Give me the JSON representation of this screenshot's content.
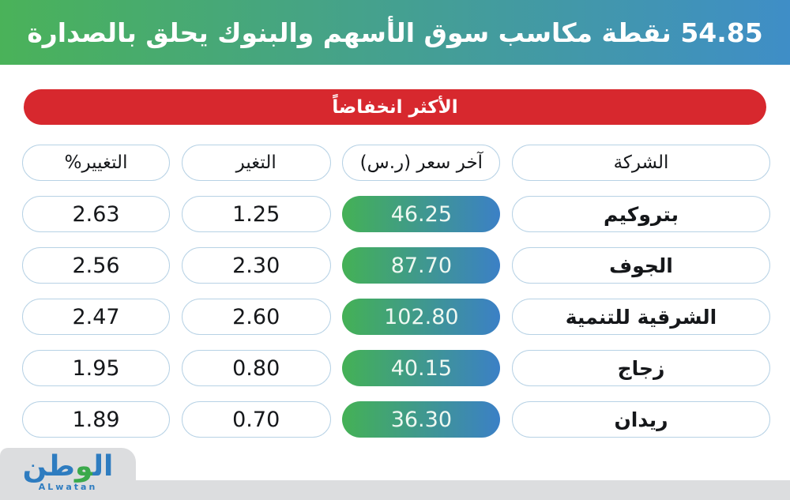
{
  "header": {
    "title": "54.85 نقطة مكاسب سوق الأسهم والبنوك يحلق بالصدارة"
  },
  "banner": {
    "label": "الأكثر انخفاضاً"
  },
  "table": {
    "columns": {
      "company": "الشركة",
      "price": "آخر سعر (ر.س)",
      "change": "التغير",
      "change_pct": "التغيير%"
    },
    "rows": [
      {
        "company": "بتروكيم",
        "price": "46.25",
        "change": "1.25",
        "change_pct": "2.63"
      },
      {
        "company": "الجوف",
        "price": "87.70",
        "change": "2.30",
        "change_pct": "2.56"
      },
      {
        "company": "الشرقية للتنمية",
        "price": "102.80",
        "change": "2.60",
        "change_pct": "2.47"
      },
      {
        "company": "زجاج",
        "price": "40.15",
        "change": "0.80",
        "change_pct": "1.95"
      },
      {
        "company": "ريدان",
        "price": "36.30",
        "change": "0.70",
        "change_pct": "1.89"
      }
    ]
  },
  "chart_data": {
    "type": "table",
    "title": "الأكثر انخفاضاً",
    "columns": [
      "الشركة",
      "آخر سعر (ر.س)",
      "التغير",
      "التغيير%"
    ],
    "rows": [
      [
        "بتروكيم",
        46.25,
        1.25,
        2.63
      ],
      [
        "الجوف",
        87.7,
        2.3,
        2.56
      ],
      [
        "الشرقية للتنمية",
        102.8,
        2.6,
        2.47
      ],
      [
        "زجاج",
        40.15,
        0.8,
        1.95
      ],
      [
        "ريدان",
        36.3,
        0.7,
        1.89
      ]
    ]
  },
  "logo": {
    "arabic_prefix": "ال",
    "arabic_waw": "و",
    "arabic_suffix": "طن",
    "latin": "ALwatan"
  },
  "colors": {
    "grad_green": "#4ab259",
    "grad_blue": "#3f8ec7",
    "accent_red": "#d7282e",
    "pill_border": "#b7d2e5",
    "logo_blue": "#2e7cc0",
    "logo_green": "#3aa94b",
    "footer_gray": "#dcdddf"
  }
}
